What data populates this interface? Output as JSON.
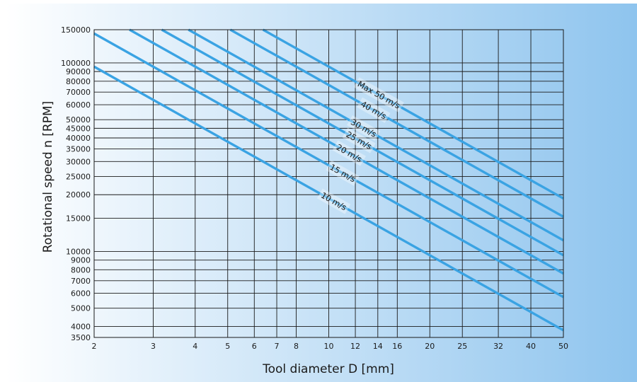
{
  "chart_data": {
    "type": "line",
    "title": "",
    "xlabel": "Tool diameter D [mm]",
    "ylabel": "Rotational speed n [RPM]",
    "x_scale": "log",
    "y_scale": "log",
    "xlim": [
      2,
      50
    ],
    "ylim": [
      3500,
      150000
    ],
    "grid": true,
    "x_ticks": [
      2,
      3,
      4,
      5,
      6,
      7,
      8,
      10,
      12,
      14,
      16,
      20,
      25,
      32,
      40,
      50
    ],
    "y_ticks": [
      3500,
      4000,
      5000,
      6000,
      7000,
      8000,
      9000,
      10000,
      15000,
      20000,
      25000,
      30000,
      35000,
      40000,
      45000,
      50000,
      60000,
      70000,
      80000,
      90000,
      100000,
      150000
    ],
    "colors": {
      "line": "#3aa3e3",
      "grid": "#1a1a1a",
      "bg_left": "#ffffff",
      "bg_right": "#8ec4ee"
    },
    "series": [
      {
        "name": "10 m/s",
        "cutting_speed": 10,
        "x": [
          2,
          50
        ],
        "y": [
          95493,
          3820
        ]
      },
      {
        "name": "15 m/s",
        "cutting_speed": 15,
        "x": [
          2,
          50
        ],
        "y": [
          143239,
          5730
        ]
      },
      {
        "name": "20 m/s",
        "cutting_speed": 20,
        "x": [
          2.55,
          50
        ],
        "y": [
          150000,
          7639
        ]
      },
      {
        "name": "25 m/s",
        "cutting_speed": 25,
        "x": [
          3.18,
          50
        ],
        "y": [
          150000,
          9549
        ]
      },
      {
        "name": "30 m/s",
        "cutting_speed": 30,
        "x": [
          3.82,
          50
        ],
        "y": [
          150000,
          11459
        ]
      },
      {
        "name": "40 m/s",
        "cutting_speed": 40,
        "x": [
          5.09,
          50
        ],
        "y": [
          150000,
          15279
        ]
      },
      {
        "name": "Max 50 m/s",
        "cutting_speed": 50,
        "x": [
          6.37,
          50
        ],
        "y": [
          150000,
          19099
        ]
      }
    ]
  }
}
